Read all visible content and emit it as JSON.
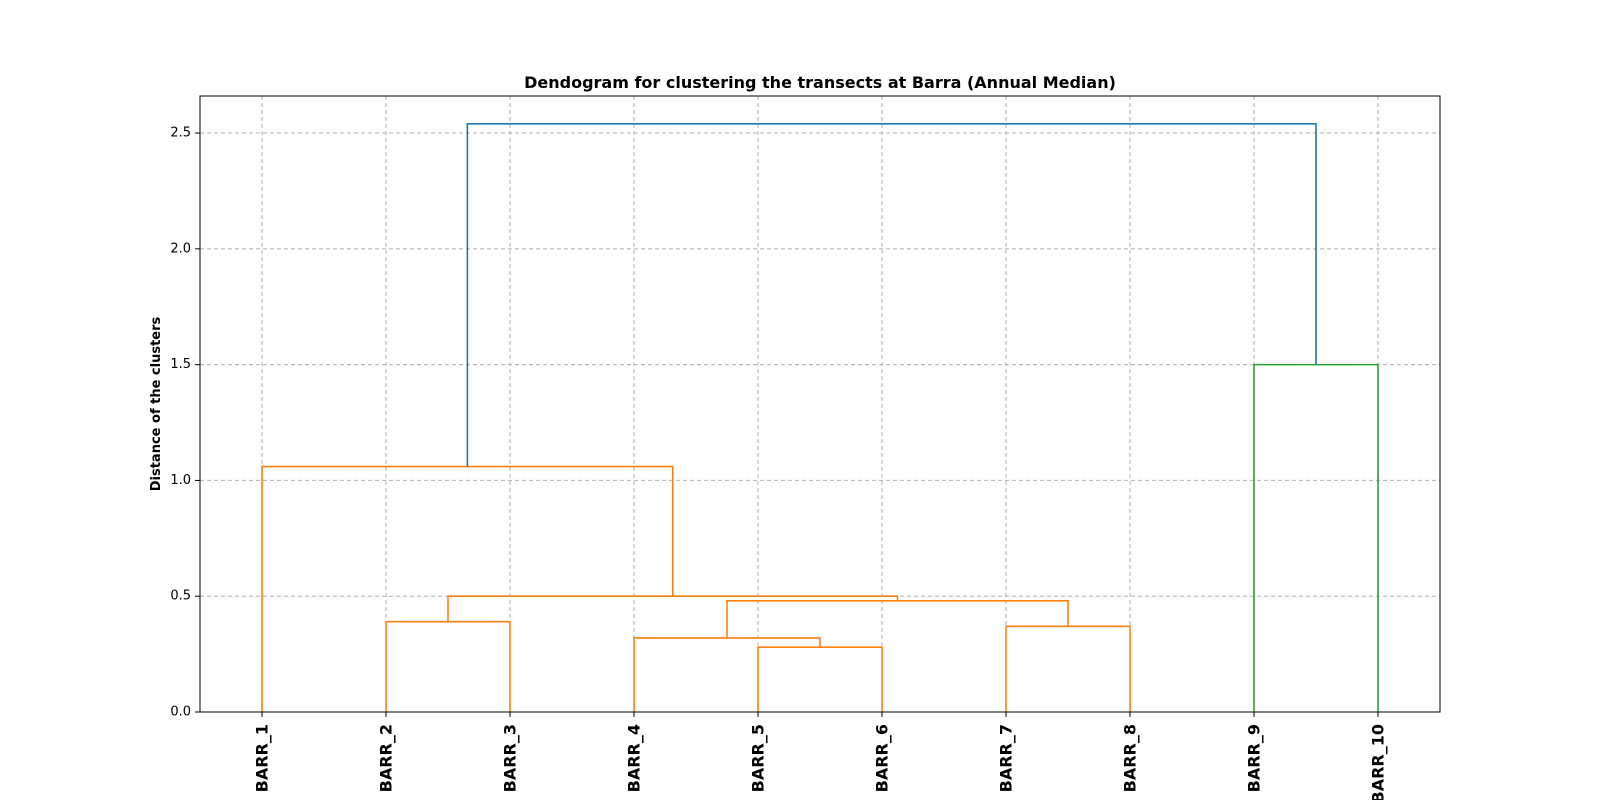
{
  "chart_data": {
    "type": "dendrogram",
    "title": "Dendogram for clustering the transects at Barra (Annual Median)",
    "xlabel": "",
    "ylabel": "Distance of the clusters",
    "ylim": [
      0,
      2.66
    ],
    "yticks": [
      0.0,
      0.5,
      1.0,
      1.5,
      2.0,
      2.5
    ],
    "ytick_labels": [
      "0.0",
      "0.5",
      "1.0",
      "1.5",
      "2.0",
      "2.5"
    ],
    "grid": true,
    "leaves": [
      "BARR_1",
      "BARR_2",
      "BARR_3",
      "BARR_4",
      "BARR_5",
      "BARR_6",
      "BARR_7",
      "BARR_8",
      "BARR_9",
      "BARR_10"
    ],
    "colors": {
      "cluster_a": "#ff7f0e",
      "cluster_b": "#2ca02c",
      "above_threshold": "#1f77b4",
      "grid": "#b0b0b0"
    },
    "merges": [
      {
        "id": "m1",
        "left": "BARR_5",
        "right": "BARR_6",
        "height": 0.28,
        "color": "cluster_a"
      },
      {
        "id": "m2",
        "left": "BARR_4",
        "right": "m1",
        "height": 0.32,
        "color": "cluster_a"
      },
      {
        "id": "m3",
        "left": "BARR_7",
        "right": "BARR_8",
        "height": 0.37,
        "color": "cluster_a"
      },
      {
        "id": "m4",
        "left": "BARR_2",
        "right": "BARR_3",
        "height": 0.39,
        "color": "cluster_a"
      },
      {
        "id": "m5",
        "left": "m2",
        "right": "m3",
        "height": 0.48,
        "color": "cluster_a"
      },
      {
        "id": "m6",
        "left": "m4",
        "right": "m5",
        "height": 0.5,
        "color": "cluster_a"
      },
      {
        "id": "m7",
        "left": "BARR_1",
        "right": "m6",
        "height": 1.06,
        "color": "cluster_a"
      },
      {
        "id": "m8",
        "left": "BARR_9",
        "right": "BARR_10",
        "height": 1.5,
        "color": "cluster_b"
      },
      {
        "id": "m9",
        "left": "m7",
        "right": "m8",
        "height": 2.54,
        "color": "above_threshold"
      }
    ]
  }
}
